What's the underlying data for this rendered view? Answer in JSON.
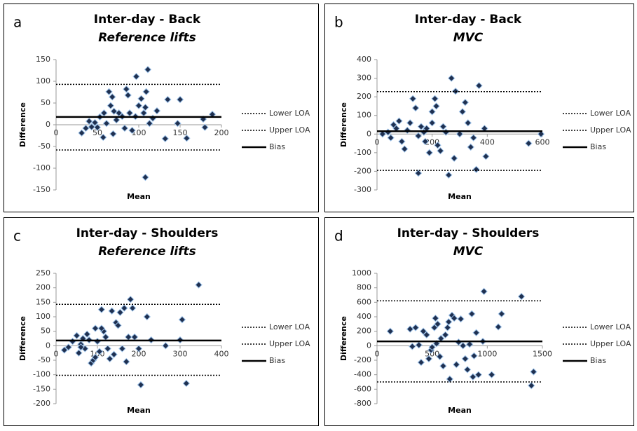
{
  "chart_data": [
    {
      "type": "scatter",
      "label": "a",
      "title": "Inter-day - Back",
      "subtitle": "Reference lifts",
      "xlabel": "Mean",
      "ylabel": "Difference",
      "xlim": [
        0,
        200
      ],
      "ylim": [
        -150,
        150
      ],
      "xticks": [
        0,
        50,
        100,
        150,
        200
      ],
      "yticks": [
        -150,
        -100,
        -50,
        0,
        50,
        100,
        150
      ],
      "color": "#1f3050",
      "x": [
        31,
        36,
        40,
        43,
        47,
        50,
        53,
        57,
        58,
        61,
        64,
        66,
        68,
        69,
        70,
        73,
        76,
        80,
        83,
        85,
        87,
        89,
        92,
        96,
        97,
        100,
        103,
        106,
        108,
        109,
        111,
        108,
        113,
        117,
        122,
        132,
        135,
        147,
        150,
        158,
        178,
        180,
        189
      ],
      "y": [
        -19,
        -8,
        8,
        -5,
        5,
        -6,
        18,
        -29,
        27,
        3,
        76,
        44,
        64,
        -21,
        31,
        11,
        27,
        19,
        -8,
        82,
        68,
        27,
        -13,
        19,
        111,
        44,
        60,
        27,
        40,
        76,
        127,
        -121,
        3,
        15,
        32,
        -32,
        58,
        3,
        58,
        -31,
        13,
        -6,
        24
      ],
      "lines": [
        {
          "name": "Lower LOA",
          "value": -58,
          "dash": "dotted",
          "color": "#000000"
        },
        {
          "name": "Upper LOA",
          "value": 93,
          "dash": "dotted",
          "color": "#000000"
        },
        {
          "name": "Bias",
          "value": 18,
          "dash": "solid",
          "color": "#000000"
        }
      ]
    },
    {
      "type": "scatter",
      "label": "b",
      "title": "Inter-day - Back",
      "subtitle": "MVC",
      "xlabel": "Mean",
      "ylabel": "Difference",
      "xlim": [
        0,
        600
      ],
      "ylim": [
        -300,
        400
      ],
      "xticks": [
        0,
        200,
        400,
        600
      ],
      "yticks": [
        -300,
        -200,
        -100,
        0,
        100,
        200,
        300,
        400
      ],
      "color": "#1f3050",
      "x": [
        20,
        40,
        50,
        60,
        70,
        80,
        90,
        100,
        110,
        120,
        130,
        140,
        150,
        160,
        170,
        180,
        190,
        200,
        210,
        215,
        220,
        230,
        240,
        260,
        270,
        280,
        285,
        300,
        310,
        320,
        330,
        340,
        350,
        360,
        370,
        390,
        395,
        550,
        595,
        150,
        175,
        200,
        250
      ],
      "y": [
        0,
        10,
        -20,
        50,
        30,
        70,
        -40,
        -80,
        20,
        60,
        190,
        140,
        -210,
        40,
        10,
        30,
        -100,
        60,
        190,
        150,
        -60,
        -90,
        40,
        -220,
        300,
        -130,
        230,
        0,
        120,
        170,
        60,
        -70,
        -20,
        -190,
        260,
        30,
        -120,
        -50,
        0,
        -10,
        -40,
        120,
        10
      ],
      "lines": [
        {
          "name": "Lower LOA",
          "value": -195,
          "dash": "dotted",
          "color": "#000000"
        },
        {
          "name": "Upper LOA",
          "value": 228,
          "dash": "dotted",
          "color": "#000000"
        },
        {
          "name": "Bias",
          "value": 15,
          "dash": "solid",
          "color": "#000000"
        }
      ]
    },
    {
      "type": "scatter",
      "label": "c",
      "title": "Inter-day - Shoulders",
      "subtitle": "Reference lifts",
      "xlabel": "Mean",
      "ylabel": "Difference",
      "xlim": [
        0,
        400
      ],
      "ylim": [
        -200,
        250
      ],
      "xticks": [
        0,
        100,
        200,
        300,
        400
      ],
      "yticks": [
        -200,
        -150,
        -100,
        -50,
        0,
        50,
        100,
        150,
        200,
        250
      ],
      "color": "#1f3050",
      "x": [
        20,
        30,
        40,
        50,
        55,
        60,
        65,
        70,
        75,
        80,
        85,
        90,
        95,
        100,
        105,
        110,
        115,
        120,
        125,
        130,
        135,
        140,
        145,
        150,
        155,
        160,
        165,
        170,
        175,
        180,
        185,
        190,
        200,
        205,
        220,
        230,
        265,
        300,
        305,
        315,
        345,
        95,
        60,
        110
      ],
      "y": [
        -15,
        -5,
        15,
        35,
        -25,
        5,
        25,
        -10,
        40,
        20,
        -60,
        -50,
        60,
        15,
        -20,
        125,
        50,
        30,
        -10,
        -45,
        120,
        -30,
        80,
        70,
        115,
        -10,
        130,
        -55,
        30,
        160,
        130,
        30,
        -10,
        -135,
        100,
        20,
        0,
        20,
        90,
        -130,
        210,
        -40,
        -5,
        60
      ],
      "lines": [
        {
          "name": "Lower LOA",
          "value": -102,
          "dash": "dotted",
          "color": "#000000"
        },
        {
          "name": "Upper LOA",
          "value": 143,
          "dash": "dotted",
          "color": "#000000"
        },
        {
          "name": "Bias",
          "value": 18,
          "dash": "solid",
          "color": "#000000"
        }
      ]
    },
    {
      "type": "scatter",
      "label": "d",
      "title": "Inter-day - Shoulders",
      "subtitle": "MVC",
      "xlabel": "Mean",
      "ylabel": "Difference",
      "xlim": [
        0,
        1500
      ],
      "ylim": [
        -800,
        1000
      ],
      "xticks": [
        0,
        500,
        1000,
        1500
      ],
      "yticks": [
        -800,
        -600,
        -400,
        -200,
        0,
        200,
        400,
        600,
        800,
        1000
      ],
      "color": "#1f3050",
      "x": [
        120,
        300,
        320,
        350,
        380,
        400,
        420,
        450,
        470,
        490,
        500,
        520,
        530,
        540,
        550,
        570,
        580,
        600,
        620,
        640,
        650,
        660,
        680,
        700,
        720,
        740,
        760,
        780,
        800,
        820,
        840,
        860,
        870,
        880,
        900,
        920,
        960,
        970,
        1040,
        1100,
        1130,
        1310,
        1400,
        1420
      ],
      "y": [
        200,
        230,
        -10,
        250,
        10,
        -230,
        200,
        150,
        -180,
        -60,
        -20,
        250,
        380,
        30,
        300,
        -150,
        100,
        -280,
        150,
        250,
        330,
        -460,
        420,
        380,
        -260,
        50,
        370,
        0,
        -180,
        -330,
        20,
        440,
        -430,
        -140,
        180,
        -400,
        60,
        750,
        -400,
        260,
        440,
        680,
        -550,
        -360
      ],
      "lines": [
        {
          "name": "Lower LOA",
          "value": -500,
          "dash": "dotted",
          "color": "#000000"
        },
        {
          "name": "Upper LOA",
          "value": 620,
          "dash": "dotted",
          "color": "#000000"
        },
        {
          "name": "Bias",
          "value": 60,
          "dash": "solid",
          "color": "#000000"
        }
      ]
    }
  ]
}
